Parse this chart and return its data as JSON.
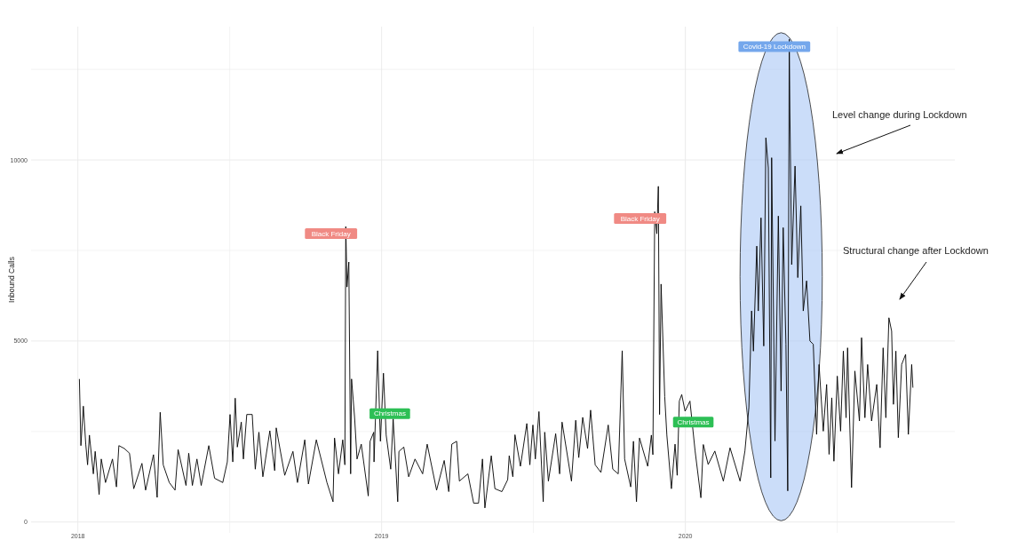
{
  "chart_data": {
    "type": "line",
    "ylabel": "Inbound Calls",
    "xlim": [
      2017.846,
      2020.887
    ],
    "ylim": [
      -300,
      13680
    ],
    "xticks": [
      2018,
      {
        "value": 2018.5,
        "label": null
      },
      2019,
      {
        "value": 2019.5,
        "label": null
      },
      2020,
      {
        "value": 2020.5,
        "label": null
      }
    ],
    "yticks": [
      0,
      {
        "value": 2500,
        "label": null
      },
      5000,
      {
        "value": 7500,
        "label": null
      },
      10000,
      {
        "value": 12500,
        "label": null
      }
    ],
    "grid": true,
    "marker": "none",
    "line_style": "solid",
    "annotations": [
      "Black Friday",
      {
        "text": "Christmas",
        "x": 2019.027,
        "y": 2990
      },
      "Black Friday",
      {
        "text": "Christmas",
        "x": 2020.026,
        "y": 2760
      },
      "Covid-19 Lockdown",
      "Level change during Lockdown",
      "Structural change after Lockdown"
    ],
    "series": [
      {
        "color": "#000000",
        "x": [
          2018.005,
          2018.01,
          2018.018,
          2018.026,
          2018.032,
          2018.038,
          2018.051,
          2018.057,
          2018.07,
          2018.077,
          2018.091,
          2018.114,
          2018.127,
          2018.135,
          2018.153,
          2018.17,
          2018.184,
          2018.211,
          2018.223,
          2018.249,
          2018.261,
          2018.271,
          2018.281,
          2018.301,
          2018.32,
          2018.33,
          2018.356,
          2018.365,
          2018.377,
          2018.392,
          2018.406,
          2018.431,
          2018.45,
          2018.477,
          2018.492,
          2018.501,
          2018.51,
          2018.518,
          2018.525,
          2018.538,
          2018.545,
          2018.556,
          2018.574,
          2018.584,
          2018.596,
          2018.609,
          2018.632,
          2018.648,
          2018.653,
          2018.681,
          2018.708,
          2018.723,
          2018.747,
          2018.759,
          2018.785,
          2018.82,
          2018.84,
          2018.845,
          2018.858,
          2018.872,
          2018.879,
          2018.882,
          2018.886,
          2018.892,
          2018.898,
          2018.901,
          2018.911,
          2018.919,
          2018.933,
          2018.956,
          2018.962,
          2018.974,
          2018.975,
          2018.987,
          2018.996,
          2019.006,
          2019.015,
          2019.03,
          2019.038,
          2019.053,
          2019.057,
          2019.073,
          2019.089,
          2019.11,
          2019.135,
          2019.15,
          2019.181,
          2019.206,
          2019.221,
          2019.231,
          2019.247,
          2019.256,
          2019.284,
          2019.303,
          2019.319,
          2019.332,
          2019.34,
          2019.361,
          2019.373,
          2019.396,
          2019.415,
          2019.42,
          2019.432,
          2019.439,
          2019.457,
          2019.478,
          2019.488,
          2019.498,
          2019.506,
          2019.518,
          2019.532,
          2019.537,
          2019.549,
          2019.573,
          2019.586,
          2019.594,
          2019.625,
          2019.639,
          2019.649,
          2019.662,
          2019.678,
          2019.688,
          2019.703,
          2019.722,
          2019.746,
          2019.761,
          2019.779,
          2019.792,
          2019.8,
          2019.82,
          2019.829,
          2019.839,
          2019.849,
          2019.876,
          2019.888,
          2019.893,
          2019.899,
          2019.906,
          2019.911,
          2019.915,
          2019.92,
          2019.932,
          2019.939,
          2019.954,
          2019.966,
          2019.973,
          2019.98,
          2019.988,
          2019.999,
          2020.015,
          2020.032,
          2020.051,
          2020.059,
          2020.075,
          2020.097,
          2020.125,
          2020.147,
          2020.18,
          2020.196,
          2020.209,
          2020.218,
          2020.224,
          2020.235,
          2020.24,
          2020.249,
          2020.258,
          2020.265,
          2020.273,
          2020.281,
          2020.284,
          2020.295,
          2020.306,
          2020.315,
          2020.322,
          2020.331,
          2020.337,
          2020.342,
          2020.344,
          2020.35,
          2020.361,
          2020.37,
          2020.38,
          2020.388,
          2020.399,
          2020.41,
          2020.421,
          2020.432,
          2020.44,
          2020.454,
          2020.465,
          2020.473,
          2020.482,
          2020.489,
          2020.5,
          2020.511,
          2020.52,
          2020.529,
          2020.534,
          2020.547,
          2020.558,
          2020.573,
          2020.58,
          2020.591,
          2020.6,
          2020.613,
          2020.63,
          2020.641,
          2020.651,
          2020.66,
          2020.67,
          2020.679,
          2020.685,
          2020.693,
          2020.701,
          2020.712,
          2020.725,
          2020.734,
          2020.745,
          2020.749
        ],
        "values": [
          3950,
          2110,
          3200,
          2150,
          1580,
          2400,
          1330,
          1950,
          760,
          1740,
          1090,
          1740,
          970,
          2110,
          2030,
          1900,
          920,
          1620,
          880,
          1860,
          680,
          3030,
          1580,
          1090,
          880,
          2000,
          1010,
          1900,
          1010,
          1740,
          1010,
          2110,
          1210,
          1090,
          1660,
          2970,
          1660,
          3420,
          2070,
          2760,
          1740,
          2970,
          2970,
          1460,
          2480,
          1250,
          2520,
          1420,
          2600,
          1290,
          1950,
          1090,
          2270,
          1050,
          2270,
          1090,
          560,
          2320,
          1330,
          2270,
          1580,
          8160,
          6490,
          7180,
          1330,
          3950,
          2890,
          1740,
          2150,
          720,
          2230,
          2480,
          1660,
          4730,
          2230,
          4110,
          2400,
          1460,
          2850,
          560,
          1950,
          2070,
          1250,
          1740,
          1330,
          2150,
          880,
          1700,
          840,
          2150,
          2230,
          1130,
          1330,
          520,
          520,
          1740,
          390,
          1830,
          920,
          840,
          1170,
          1830,
          1250,
          2410,
          1540,
          2720,
          1580,
          2680,
          1740,
          3050,
          560,
          2480,
          1130,
          2440,
          1330,
          2760,
          1130,
          2810,
          1780,
          2890,
          2030,
          3090,
          1580,
          1370,
          2680,
          1460,
          1330,
          4730,
          1740,
          970,
          2230,
          560,
          2320,
          1540,
          2400,
          1860,
          8570,
          7960,
          9270,
          2970,
          6570,
          3460,
          2400,
          920,
          2150,
          1290,
          3340,
          3520,
          3060,
          3340,
          1960,
          670,
          2140,
          1590,
          1960,
          1130,
          2050,
          1130,
          1960,
          3160,
          5830,
          4720,
          7620,
          5830,
          8400,
          4860,
          10610,
          9780,
          1220,
          10060,
          2240,
          8450,
          3620,
          8130,
          4910,
          860,
          13330,
          11350,
          7110,
          9830,
          6750,
          8730,
          5830,
          6660,
          5000,
          4910,
          2420,
          4350,
          2510,
          3800,
          1870,
          3430,
          1680,
          4030,
          2510,
          4720,
          2880,
          4810,
          950,
          4170,
          2790,
          5090,
          2880,
          4350,
          2790,
          3800,
          2050,
          4810,
          2880,
          5640,
          5270,
          3250,
          4720,
          2330,
          4350,
          4630,
          2420,
          4350,
          3710
        ]
      }
    ]
  }
}
